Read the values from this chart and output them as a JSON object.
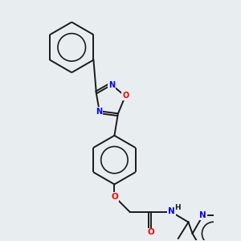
{
  "background_color": "#e8edf0",
  "bond_color": "#1a1a1a",
  "atom_colors": {
    "N": "#0000ff",
    "O": "#ff0000",
    "C": "#1a1a1a",
    "H": "#1a1a1a"
  },
  "lw": 1.4,
  "dbo": 0.055,
  "figsize": [
    3.0,
    3.0
  ],
  "dpi": 100
}
